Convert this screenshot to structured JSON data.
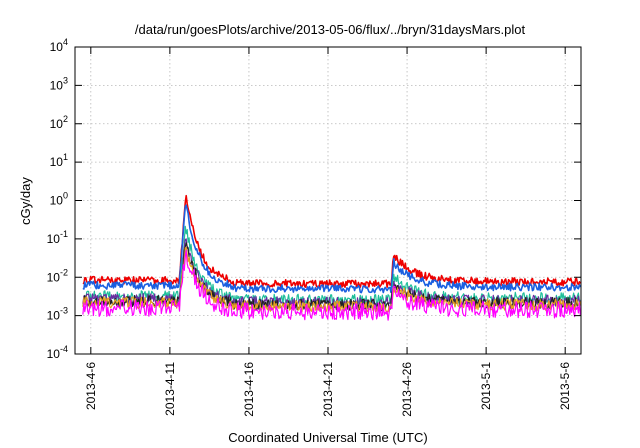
{
  "chart_data": {
    "type": "line",
    "title": "/data/run/goesPlots/archive/2013-05-06/flux/../bryn/31daysMars.plot",
    "xlabel": "Coordinated Universal Time (UTC)",
    "ylabel": "cGy/day",
    "yscale": "log",
    "ylim": [
      0.0001,
      10000
    ],
    "xlim": [
      "2013-04-05",
      "2013-05-07"
    ],
    "y_ticks": [
      {
        "base": "10",
        "exp": "-4"
      },
      {
        "base": "10",
        "exp": "-3"
      },
      {
        "base": "10",
        "exp": "-2"
      },
      {
        "base": "10",
        "exp": "-1"
      },
      {
        "base": "10",
        "exp": "0"
      },
      {
        "base": "10",
        "exp": "1"
      },
      {
        "base": "10",
        "exp": "2"
      },
      {
        "base": "10",
        "exp": "3"
      },
      {
        "base": "10",
        "exp": "4"
      }
    ],
    "x_ticks": [
      "2013-4-6",
      "2013-4-11",
      "2013-4-16",
      "2013-4-21",
      "2013-4-26",
      "2013-5-1",
      "2013-5-6"
    ],
    "grid": true,
    "series": [
      {
        "color": "#ee0000",
        "baseline": 0.0085,
        "peak": 1.5,
        "secondary_peak": 0.04,
        "late_value": 0.0075
      },
      {
        "color": "#1a5fe0",
        "baseline": 0.0062,
        "peak": 0.9,
        "secondary_peak": 0.025,
        "late_value": 0.0055
      },
      {
        "color": "#1fbf9a",
        "baseline": 0.0032,
        "peak": 0.2,
        "secondary_peak": 0.011,
        "late_value": 0.0028
      },
      {
        "color": "#6a2ca0",
        "baseline": 0.0027,
        "peak": 0.1,
        "secondary_peak": 0.0075,
        "late_value": 0.0024
      },
      {
        "color": "#222222",
        "baseline": 0.0024,
        "peak": 0.08,
        "secondary_peak": 0.0065,
        "late_value": 0.0021
      },
      {
        "color": "#e6a020",
        "baseline": 0.0022,
        "peak": 0.06,
        "secondary_peak": 0.006,
        "late_value": 0.0019
      },
      {
        "color": "#ff00ff",
        "baseline": 0.0016,
        "peak": 0.05,
        "secondary_peak": 0.0045,
        "late_value": 0.0014
      }
    ],
    "event_1": {
      "onset": "2013-04-11",
      "peak": "2013-04-12"
    },
    "event_2": {
      "onset": "2013-04-25",
      "peak": "2013-04-25"
    }
  }
}
